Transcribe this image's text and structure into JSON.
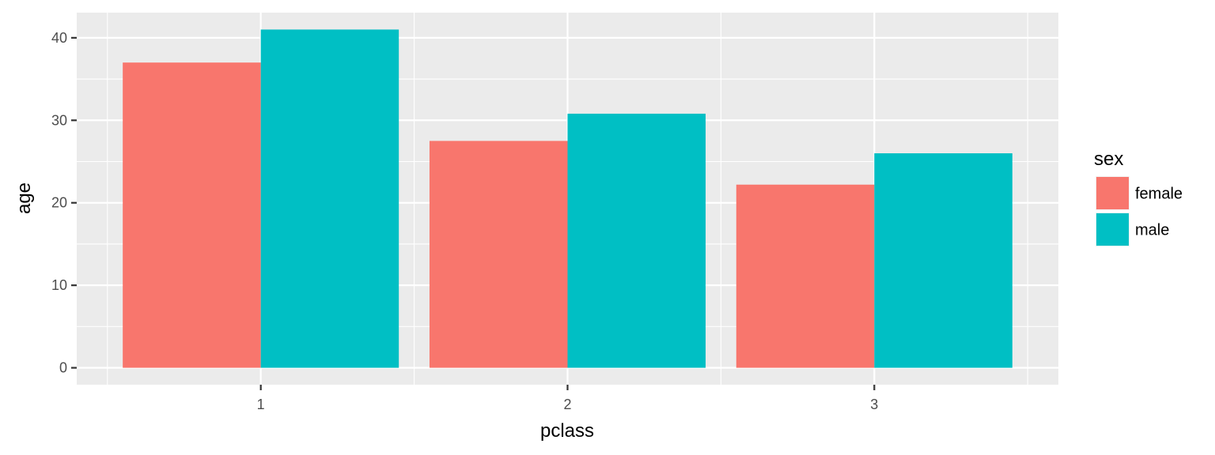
{
  "chart_data": {
    "type": "bar",
    "title": "",
    "xlabel": "pclass",
    "ylabel": "age",
    "categories": [
      "1",
      "2",
      "3"
    ],
    "series": [
      {
        "name": "female",
        "color": "#F8766D",
        "values": [
          37,
          27.5,
          22.2
        ]
      },
      {
        "name": "male",
        "color": "#00BFC4",
        "values": [
          41,
          30.8,
          26
        ]
      }
    ],
    "ylim": [
      -2.05,
      43.05
    ],
    "yticks": [
      0,
      10,
      20,
      30,
      40
    ],
    "ytick_labels": [
      "0",
      "10",
      "20",
      "30",
      "40"
    ],
    "grid": true,
    "panel_background": "#EBEBEB",
    "legend": {
      "title": "sex",
      "position": "right"
    }
  }
}
